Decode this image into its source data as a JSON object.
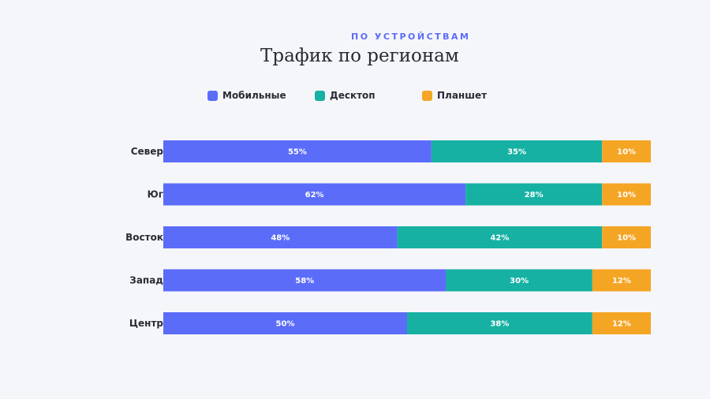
{
  "chart_data": {
    "type": "bar",
    "orientation": "horizontal",
    "stacked": true,
    "subtitle": "ПО УСТРОЙСТВАМ",
    "title": "Трафик по регионам",
    "categories": [
      "Север",
      "Юг",
      "Восток",
      "Запад",
      "Центр"
    ],
    "series": [
      {
        "name": "Мобильные",
        "color": "#5b6cf9",
        "values": [
          55,
          62,
          48,
          58,
          50
        ]
      },
      {
        "name": "Десктоп",
        "color": "#16b1a3",
        "values": [
          35,
          28,
          42,
          30,
          38
        ]
      },
      {
        "name": "Планшет",
        "color": "#f5a524",
        "values": [
          10,
          10,
          10,
          12,
          12
        ]
      }
    ],
    "value_format": "{v}%",
    "xlim": [
      0,
      100
    ],
    "legend_position": "top-center",
    "grid": false
  }
}
